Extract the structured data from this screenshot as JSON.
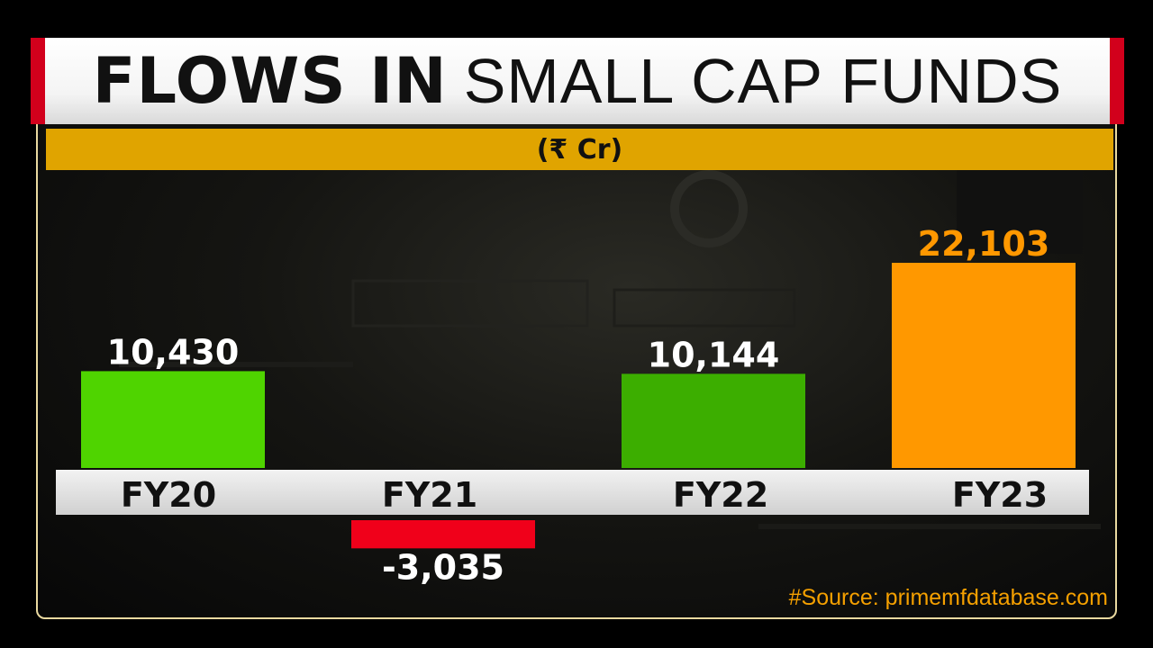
{
  "header": {
    "title_bold": "FLOWS IN",
    "title_light": "SMALL CAP FUNDS",
    "unit": "(₹ Cr)"
  },
  "source": "#Source: primemfdatabase.com",
  "colors": {
    "positive": "#4fd400",
    "positive_dark": "#3cae00",
    "negative": "#f0001a",
    "highlight": "#ff9800",
    "accent": "#e0a400",
    "frame_red": "#d2001c"
  },
  "chart_data": {
    "type": "bar",
    "categories": [
      "FY20",
      "FY21",
      "FY22",
      "FY23"
    ],
    "values": [
      10430,
      -3035,
      10144,
      22103
    ],
    "value_labels": [
      "10,430",
      "-3,035",
      "10,144",
      "22,103"
    ],
    "title": "FLOWS IN SMALL CAP FUNDS",
    "ylabel": "(₹ Cr)",
    "grid": false
  }
}
